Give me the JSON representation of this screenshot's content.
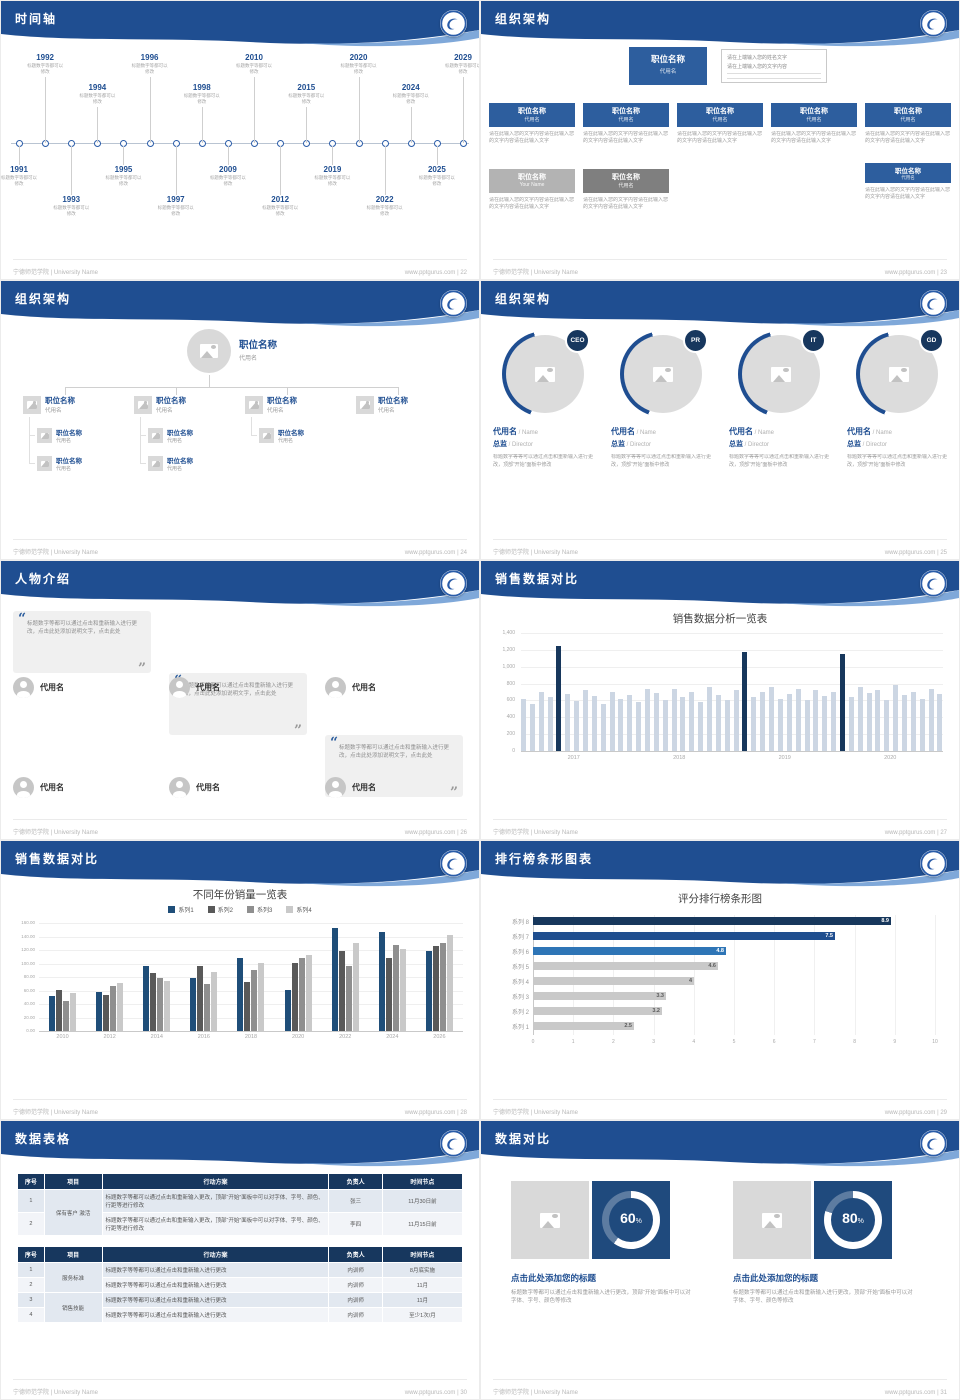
{
  "meta": {
    "site": "www.pptgurus.com",
    "org": "宁德师范学院 | University Name",
    "brand_navy": "#17375e",
    "brand_blue": "#1f4e91",
    "accent_light": "#7fa8d9"
  },
  "slides": [
    {
      "type": "timeline",
      "title": "时间轴",
      "page": "22"
    },
    {
      "type": "org-boxes",
      "title": "组织架构",
      "page": "23"
    },
    {
      "type": "org-tree",
      "title": "组织架构",
      "page": "24"
    },
    {
      "type": "org-circles",
      "title": "组织架构",
      "page": "25"
    },
    {
      "type": "people",
      "title": "人物介绍",
      "page": "26"
    },
    {
      "type": "chart-dense",
      "title": "销售数据对比",
      "page": "27"
    },
    {
      "type": "chart-group",
      "title": "销售数据对比",
      "page": "28"
    },
    {
      "type": "chart-rank",
      "title": "排行榜条形图表",
      "page": "29"
    },
    {
      "type": "tables",
      "title": "数据表格",
      "page": "30"
    },
    {
      "type": "compare",
      "title": "数据对比",
      "page": "31"
    }
  ],
  "timeline": {
    "caption": "标题数字等都可以修改",
    "top_years": [
      "1992",
      "1994",
      "1996",
      "1998",
      "2010",
      "2015",
      "2020",
      "2024",
      "2029"
    ],
    "bottom_years": [
      "1991",
      "1993",
      "1995",
      "1997",
      "2009",
      "2012",
      "2019",
      "2022",
      "2025"
    ]
  },
  "org_boxes": {
    "root_title": "职位名称",
    "root_sub": "代用名",
    "note_lines": [
      "请在上端输入您的姓名文字",
      "请在上端输入您的文字内容"
    ],
    "desc": "请在此输入您的文字内容请在此输入您的文字内容请在此输入文字",
    "level2": [
      {
        "title": "职位名称",
        "sub": "代用名"
      },
      {
        "title": "职位名称",
        "sub": "代用名"
      },
      {
        "title": "职位名称",
        "sub": "代用名"
      },
      {
        "title": "职位名称",
        "sub": "代用名"
      },
      {
        "title": "职位名称",
        "sub": "代用名"
      }
    ],
    "extra": {
      "title": "职位名称",
      "sub": "代用名"
    },
    "level3": [
      {
        "title": "职位名称",
        "sub": "Your Name",
        "tone": "light"
      },
      {
        "title": "职位名称",
        "sub": "代用名",
        "tone": "dark"
      }
    ]
  },
  "org_tree": {
    "root_title": "职位名称",
    "root_sub": "代用名",
    "branches": [
      {
        "title": "职位名称",
        "sub": "代用名",
        "children": [
          {
            "title": "职位名称",
            "sub": "代用名"
          },
          {
            "title": "职位名称",
            "sub": "代用名"
          }
        ]
      },
      {
        "title": "职位名称",
        "sub": "代用名",
        "children": [
          {
            "title": "职位名称",
            "sub": "代用名"
          },
          {
            "title": "职位名称",
            "sub": "代用名"
          }
        ]
      },
      {
        "title": "职位名称",
        "sub": "代用名",
        "children": [
          {
            "title": "职位名称",
            "sub": "代用名"
          }
        ]
      },
      {
        "title": "职位名称",
        "sub": "代用名",
        "children": []
      }
    ]
  },
  "org_circles": {
    "badges": [
      "CEO",
      "PR",
      "IT",
      "GD"
    ],
    "name": "代用名",
    "name_en": "/ Name",
    "role": "总监",
    "role_en": "/ Director",
    "desc": "标题数字等等可以通过点击和重新输入进行更改，顶部“开始”面板中修改"
  },
  "people": {
    "name": "代用名",
    "quote": "标题数字等都可以通过点击和重新输入进行更改，点击此处添加说明文字，点击此处"
  },
  "tables": {
    "headers": [
      "序号",
      "项目",
      "行动方案",
      "负责人",
      "时间节点"
    ],
    "table1": {
      "project": "保有客户 激活",
      "rows": [
        {
          "no": "1",
          "plan": "标题数字等都可以通过点击和重新输入更改，顶部“开始”面板中可以对字体、字号、颜色、行距等进行修改",
          "owner": "张三",
          "time": "11月30日前"
        },
        {
          "no": "2",
          "plan": "标题数字等都可以通过点击和重新输入更改，顶部“开始”面板中可以对字体、字号、颜色、行距等进行修改",
          "owner": "李四",
          "time": "11月15日前"
        }
      ]
    },
    "table2": {
      "projects": [
        "服务标准",
        "销售技能"
      ],
      "rows": [
        {
          "no": "1",
          "plan": "标题数字等等都可以通过点击和重新输入进行更改",
          "owner": "内训师",
          "time": "8月底实施"
        },
        {
          "no": "2",
          "plan": "标题数字等等都可以通过点击和重新输入进行更改",
          "owner": "内训师",
          "time": "11月"
        },
        {
          "no": "3",
          "plan": "标题数字等等都可以通过点击和重新输入进行更改",
          "owner": "内训师",
          "time": "11月"
        },
        {
          "no": "4",
          "plan": "标题数字等等都可以通过点击和重新输入进行更改",
          "owner": "内训师",
          "time": "至少1次/月"
        }
      ]
    }
  },
  "compare": {
    "panels": [
      {
        "percent": 60,
        "value": "60",
        "unit": "%",
        "title": "点击此处添加您的标题",
        "desc": "标题数字等都可以通过点击和重新输入进行更改，顶部“开始”面板中可以对字体、字号、颜色等修改"
      },
      {
        "percent": 80,
        "value": "80",
        "unit": "%",
        "title": "点击此处添加您的标题",
        "desc": "标题数字等都可以通过点击和重新输入进行更改，顶部“开始”面板中可以对字体、字号、颜色等修改"
      }
    ]
  },
  "chart_data": [
    {
      "type": "bar",
      "slide_page": "27",
      "title": "销售数据分析一览表",
      "x_group_labels": [
        "2017",
        "2018",
        "2019",
        "2020"
      ],
      "values": [
        620,
        560,
        700,
        640,
        1240,
        680,
        590,
        720,
        650,
        560,
        700,
        620,
        660,
        580,
        740,
        690,
        610,
        730,
        640,
        700,
        580,
        760,
        660,
        600,
        720,
        1180,
        640,
        700,
        760,
        620,
        680,
        740,
        600,
        720,
        650,
        700,
        1150,
        640,
        760,
        690,
        720,
        600,
        780,
        660,
        700,
        620,
        740,
        680
      ],
      "highlight_indexes": [
        4,
        25,
        36
      ],
      "bar_color": "#ccd6e3",
      "highlight_color": "#17375c",
      "ylim": [
        0,
        1400
      ],
      "yticks": [
        "0",
        "200",
        "400",
        "600",
        "800",
        "1,000",
        "1,200",
        "1,400"
      ],
      "grid": true,
      "legend_position": "none"
    },
    {
      "type": "bar",
      "slide_page": "28",
      "title": "不同年份销量一览表",
      "categories": [
        "2010",
        "2012",
        "2014",
        "2016",
        "2018",
        "2020",
        "2022",
        "2024",
        "2026"
      ],
      "series": [
        {
          "name": "系列1",
          "color": "#1f4e79",
          "values": [
            52,
            58,
            97,
            78,
            108,
            60,
            152,
            146,
            118
          ]
        },
        {
          "name": "系列2",
          "color": "#595959",
          "values": [
            60,
            54,
            86,
            96,
            72,
            101,
            118,
            108,
            126
          ]
        },
        {
          "name": "系列3",
          "color": "#8f8f8f",
          "values": [
            45,
            66,
            78,
            70,
            91,
            108,
            96,
            127,
            130
          ]
        },
        {
          "name": "系列4",
          "color": "#c9c9c9",
          "values": [
            57,
            71,
            74,
            87,
            100,
            112,
            131,
            121,
            142
          ]
        }
      ],
      "ylim": [
        0,
        160
      ],
      "yticks": [
        "0.00",
        "20.00",
        "40.00",
        "60.00",
        "80.00",
        "100.00",
        "120.00",
        "140.00",
        "160.00"
      ],
      "grid": true,
      "legend_position": "top"
    },
    {
      "type": "bar-horizontal",
      "slide_page": "29",
      "title": "评分排行榜条形图",
      "categories": [
        "系列 8",
        "系列 7",
        "系列 6",
        "系列 5",
        "系列 4",
        "系列 3",
        "系列 2",
        "系列 1"
      ],
      "values": [
        8.9,
        7.5,
        4.8,
        4.6,
        4,
        3.3,
        3.2,
        2.5
      ],
      "value_labels": [
        "8.9",
        "7.5",
        "4.8",
        "4.6",
        "4",
        "3.3",
        "3.2",
        "2.5"
      ],
      "bar_colors": [
        "#17375c",
        "#1f4e8f",
        "#2e75b6",
        "#c9c9c9",
        "#c9c9c9",
        "#c9c9c9",
        "#c9c9c9",
        "#c9c9c9"
      ],
      "xlim": [
        0,
        10
      ],
      "xticks": [
        "0",
        "1",
        "2",
        "3",
        "4",
        "5",
        "6",
        "7",
        "8",
        "9",
        "10"
      ],
      "grid": true,
      "legend_position": "none"
    }
  ]
}
